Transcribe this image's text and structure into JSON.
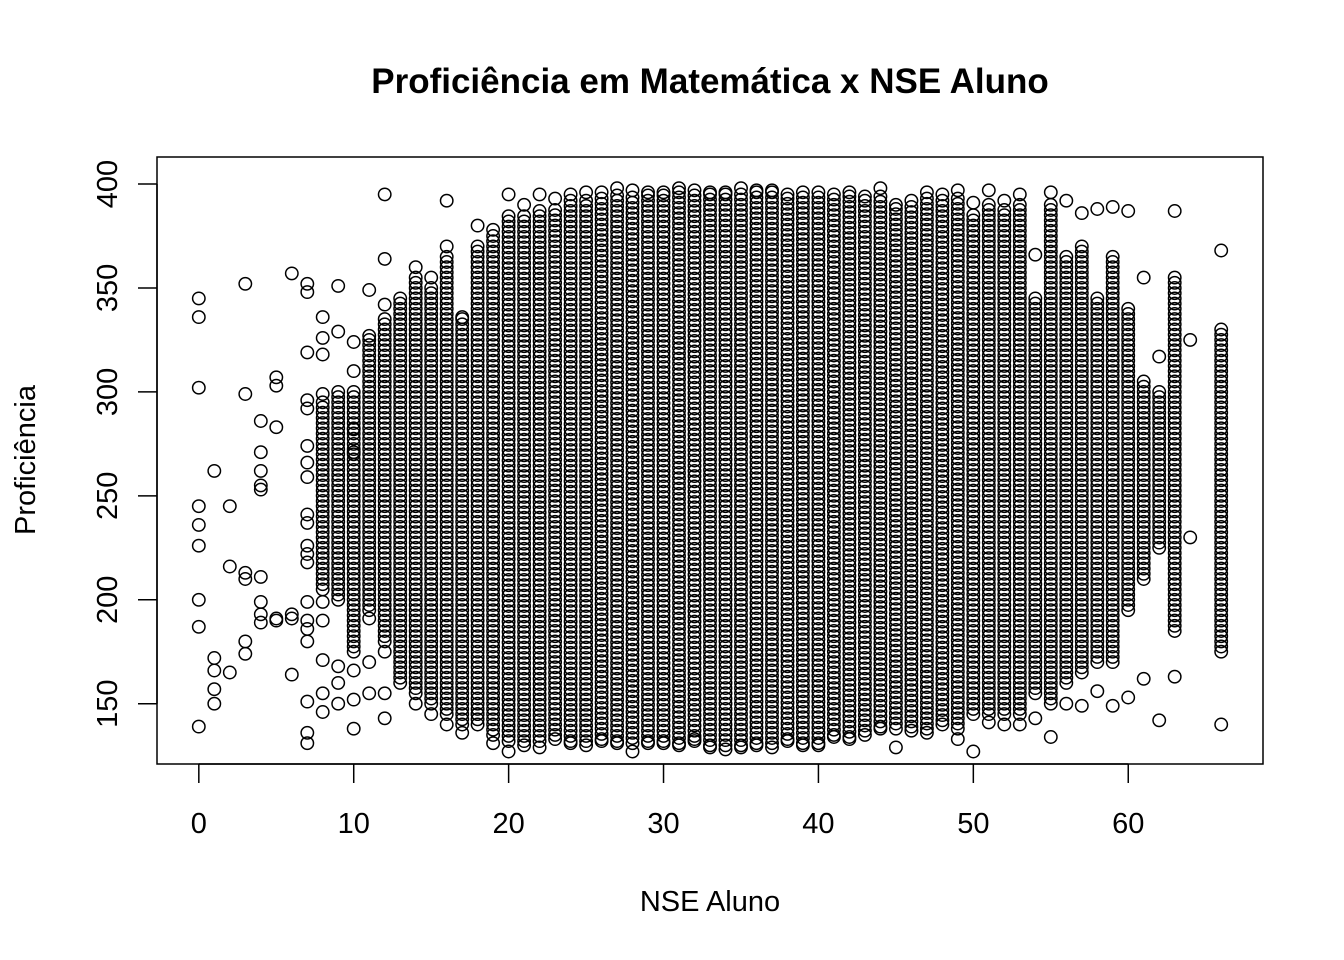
{
  "chart_data": {
    "type": "scatter",
    "title": "Proficiência em Matemática x NSE Aluno",
    "xlabel": "NSE Aluno",
    "ylabel": "Proficiência",
    "xlim": [
      -2.7,
      68.7
    ],
    "ylim": [
      121,
      413
    ],
    "x_ticks": [
      0,
      10,
      20,
      30,
      40,
      50,
      60
    ],
    "y_ticks": [
      150,
      200,
      250,
      300,
      350,
      400
    ],
    "grid": false,
    "legend": "none",
    "marker": "open-circle",
    "marker_color": "#000000",
    "series": [
      {
        "points": [
          [
            0,
            139
          ],
          [
            0,
            187
          ],
          [
            0,
            200
          ],
          [
            0,
            226
          ],
          [
            0,
            236
          ],
          [
            0,
            245
          ],
          [
            0,
            302
          ],
          [
            0,
            336
          ],
          [
            0,
            345
          ],
          [
            1,
            150
          ],
          [
            1,
            157
          ],
          [
            1,
            166
          ],
          [
            1,
            172
          ],
          [
            1,
            262
          ],
          [
            2,
            165
          ],
          [
            2,
            216
          ],
          [
            2,
            245
          ],
          [
            3,
            174
          ],
          [
            3,
            180
          ],
          [
            3,
            210
          ],
          [
            3,
            213
          ],
          [
            3,
            299
          ],
          [
            3,
            352
          ],
          [
            4,
            189
          ],
          [
            4,
            193
          ],
          [
            4,
            199
          ],
          [
            4,
            211
          ],
          [
            4,
            253
          ],
          [
            4,
            255
          ],
          [
            4,
            262
          ],
          [
            4,
            271
          ],
          [
            4,
            286
          ],
          [
            5,
            190
          ],
          [
            5,
            191
          ],
          [
            5,
            283
          ],
          [
            5,
            303
          ],
          [
            5,
            307
          ],
          [
            6,
            164
          ],
          [
            6,
            191
          ],
          [
            6,
            193
          ],
          [
            6,
            357
          ],
          [
            7,
            131
          ],
          [
            7,
            136
          ],
          [
            7,
            151
          ],
          [
            7,
            180
          ],
          [
            7,
            186
          ],
          [
            7,
            190
          ],
          [
            7,
            199
          ],
          [
            7,
            218
          ],
          [
            7,
            222
          ],
          [
            7,
            226
          ],
          [
            7,
            237
          ],
          [
            7,
            241
          ],
          [
            7,
            259
          ],
          [
            7,
            266
          ],
          [
            7,
            274
          ],
          [
            7,
            292
          ],
          [
            7,
            296
          ],
          [
            7,
            319
          ],
          [
            7,
            348
          ],
          [
            7,
            352
          ],
          [
            8,
            146
          ],
          [
            8,
            155
          ],
          [
            8,
            171
          ],
          [
            8,
            190
          ],
          [
            8,
            199
          ],
          [
            8,
            336
          ],
          [
            8,
            326
          ],
          [
            8,
            318
          ],
          [
            8,
            299
          ],
          [
            9,
            150
          ],
          [
            9,
            160
          ],
          [
            9,
            168
          ],
          [
            9,
            351
          ],
          [
            9,
            329
          ],
          [
            10,
            138
          ],
          [
            10,
            152
          ],
          [
            10,
            166
          ],
          [
            10,
            271
          ],
          [
            10,
            282
          ],
          [
            10,
            310
          ],
          [
            10,
            324
          ],
          [
            11,
            155
          ],
          [
            11,
            170
          ],
          [
            11,
            191
          ],
          [
            11,
            349
          ],
          [
            11,
            327
          ],
          [
            12,
            143
          ],
          [
            12,
            155
          ],
          [
            12,
            175
          ],
          [
            12,
            395
          ],
          [
            12,
            364
          ],
          [
            12,
            342
          ],
          [
            14,
            150
          ],
          [
            14,
            360
          ],
          [
            15,
            145
          ],
          [
            15,
            355
          ],
          [
            16,
            392
          ],
          [
            16,
            370
          ],
          [
            16,
            140
          ],
          [
            17,
            136
          ],
          [
            17,
            336
          ],
          [
            18,
            380
          ],
          [
            18,
            145
          ],
          [
            19,
            378
          ],
          [
            19,
            131
          ],
          [
            20,
            395
          ],
          [
            20,
            127
          ],
          [
            21,
            390
          ],
          [
            21,
            130
          ],
          [
            22,
            395
          ],
          [
            22,
            129
          ],
          [
            23,
            393
          ],
          [
            23,
            133
          ],
          [
            24,
            395
          ],
          [
            24,
            131
          ],
          [
            25,
            396
          ],
          [
            25,
            130
          ],
          [
            26,
            396
          ],
          [
            26,
            132
          ],
          [
            27,
            398
          ],
          [
            27,
            131
          ],
          [
            28,
            397
          ],
          [
            28,
            127
          ],
          [
            29,
            396
          ],
          [
            29,
            131
          ],
          [
            30,
            396
          ],
          [
            30,
            131
          ],
          [
            31,
            398
          ],
          [
            31,
            130
          ],
          [
            32,
            397
          ],
          [
            32,
            133
          ],
          [
            33,
            396
          ],
          [
            33,
            129
          ],
          [
            34,
            396
          ],
          [
            34,
            128
          ],
          [
            35,
            398
          ],
          [
            35,
            129
          ],
          [
            36,
            397
          ],
          [
            36,
            130
          ],
          [
            37,
            397
          ],
          [
            37,
            129
          ],
          [
            38,
            395
          ],
          [
            38,
            132
          ],
          [
            39,
            396
          ],
          [
            39,
            130
          ],
          [
            40,
            396
          ],
          [
            40,
            130
          ],
          [
            41,
            395
          ],
          [
            41,
            134
          ],
          [
            42,
            396
          ],
          [
            42,
            133
          ],
          [
            43,
            394
          ],
          [
            43,
            135
          ],
          [
            44,
            398
          ],
          [
            44,
            138
          ],
          [
            45,
            390
          ],
          [
            45,
            129
          ],
          [
            46,
            392
          ],
          [
            46,
            137
          ],
          [
            47,
            396
          ],
          [
            47,
            136
          ],
          [
            48,
            395
          ],
          [
            48,
            140
          ],
          [
            49,
            397
          ],
          [
            49,
            133
          ],
          [
            50,
            391
          ],
          [
            50,
            127
          ],
          [
            51,
            397
          ],
          [
            51,
            141
          ],
          [
            52,
            392
          ],
          [
            52,
            140
          ],
          [
            53,
            395
          ],
          [
            53,
            140
          ],
          [
            54,
            366
          ],
          [
            54,
            143
          ],
          [
            55,
            396
          ],
          [
            55,
            134
          ],
          [
            56,
            392
          ],
          [
            56,
            150
          ],
          [
            57,
            386
          ],
          [
            57,
            149
          ],
          [
            58,
            388
          ],
          [
            58,
            156
          ],
          [
            59,
            389
          ],
          [
            59,
            149
          ],
          [
            60,
            387
          ],
          [
            60,
            153
          ],
          [
            61,
            355
          ],
          [
            61,
            162
          ],
          [
            62,
            317
          ],
          [
            62,
            142
          ],
          [
            63,
            387
          ],
          [
            63,
            163
          ],
          [
            64,
            325
          ],
          [
            64,
            230
          ],
          [
            66,
            368
          ],
          [
            66,
            140
          ]
        ],
        "bands": [
          {
            "x": 8,
            "y": [
              205,
              295
            ]
          },
          {
            "x": 9,
            "y": [
              200,
              300
            ]
          },
          {
            "x": 10,
            "y": [
              175,
              300
            ]
          },
          {
            "x": 11,
            "y": [
              195,
              325
            ]
          },
          {
            "x": 12,
            "y": [
              180,
              335
            ]
          },
          {
            "x": 13,
            "y": [
              160,
              345
            ]
          },
          {
            "x": 14,
            "y": [
              155,
              355
            ]
          },
          {
            "x": 15,
            "y": [
              150,
              350
            ]
          },
          {
            "x": 16,
            "y": [
              145,
              365
            ]
          },
          {
            "x": 17,
            "y": [
              140,
              335
            ]
          },
          {
            "x": 18,
            "y": [
              140,
              370
            ]
          },
          {
            "x": 19,
            "y": [
              135,
              375
            ]
          },
          {
            "x": 20,
            "y": [
              132,
              385
            ]
          },
          {
            "x": 21,
            "y": [
              132,
              385
            ]
          },
          {
            "x": 22,
            "y": [
              132,
              388
            ]
          },
          {
            "x": 23,
            "y": [
              135,
              388
            ]
          },
          {
            "x": 24,
            "y": [
              132,
              392
            ]
          },
          {
            "x": 25,
            "y": [
              132,
              392
            ]
          },
          {
            "x": 26,
            "y": [
              133,
              393
            ]
          },
          {
            "x": 27,
            "y": [
              132,
              396
            ]
          },
          {
            "x": 28,
            "y": [
              131,
              395
            ]
          },
          {
            "x": 29,
            "y": [
              132,
              395
            ]
          },
          {
            "x": 30,
            "y": [
              132,
              395
            ]
          },
          {
            "x": 31,
            "y": [
              131,
              396
            ]
          },
          {
            "x": 32,
            "y": [
              132,
              395
            ]
          },
          {
            "x": 33,
            "y": [
              130,
              395
            ]
          },
          {
            "x": 34,
            "y": [
              130,
              395
            ]
          },
          {
            "x": 35,
            "y": [
              130,
              396
            ]
          },
          {
            "x": 36,
            "y": [
              131,
              396
            ]
          },
          {
            "x": 37,
            "y": [
              131,
              396
            ]
          },
          {
            "x": 38,
            "y": [
              133,
              394
            ]
          },
          {
            "x": 39,
            "y": [
              131,
              395
            ]
          },
          {
            "x": 40,
            "y": [
              131,
              395
            ]
          },
          {
            "x": 41,
            "y": [
              135,
              394
            ]
          },
          {
            "x": 42,
            "y": [
              134,
              394
            ]
          },
          {
            "x": 43,
            "y": [
              137,
              392
            ]
          },
          {
            "x": 44,
            "y": [
              139,
              396
            ]
          },
          {
            "x": 45,
            "y": [
              138,
              388
            ]
          },
          {
            "x": 46,
            "y": [
              139,
              390
            ]
          },
          {
            "x": 47,
            "y": [
              138,
              395
            ]
          },
          {
            "x": 48,
            "y": [
              142,
              393
            ]
          },
          {
            "x": 49,
            "y": [
              138,
              394
            ]
          },
          {
            "x": 50,
            "y": [
              145,
              385
            ]
          },
          {
            "x": 51,
            "y": [
              145,
              392
            ]
          },
          {
            "x": 52,
            "y": [
              145,
              388
            ]
          },
          {
            "x": 53,
            "y": [
              145,
              390
            ]
          },
          {
            "x": 54,
            "y": [
              155,
              345
            ]
          },
          {
            "x": 55,
            "y": [
              150,
              390
            ]
          },
          {
            "x": 56,
            "y": [
              160,
              365
            ]
          },
          {
            "x": 57,
            "y": [
              165,
              370
            ]
          },
          {
            "x": 58,
            "y": [
              170,
              345
            ]
          },
          {
            "x": 59,
            "y": [
              170,
              365
            ]
          },
          {
            "x": 60,
            "y": [
              195,
              340
            ]
          },
          {
            "x": 61,
            "y": [
              210,
              305
            ]
          },
          {
            "x": 62,
            "y": [
              225,
              300
            ]
          },
          {
            "x": 63,
            "y": [
              185,
              355
            ]
          },
          {
            "x": 66,
            "y": [
              175,
              330
            ]
          }
        ]
      }
    ]
  }
}
